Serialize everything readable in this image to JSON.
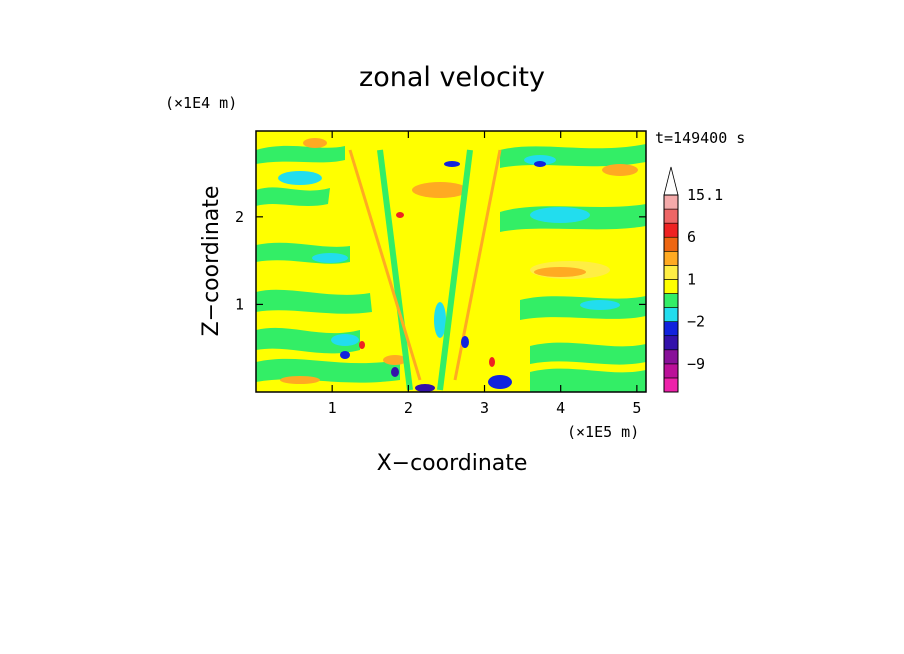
{
  "chart_data": {
    "type": "heatmap",
    "title": "zonal velocity",
    "xlabel": "X−coordinate",
    "ylabel": "Z−coordinate",
    "x_scale_note": "(×1E5 m)",
    "y_scale_note": "(×1E4 m)",
    "time_label": "t=149400 s",
    "xlim": [
      0,
      5.12
    ],
    "ylim": [
      0,
      2.98
    ],
    "x_ticks": [
      {
        "value": 1,
        "label": "1"
      },
      {
        "value": 2,
        "label": "2"
      },
      {
        "value": 3,
        "label": "3"
      },
      {
        "value": 4,
        "label": "4"
      },
      {
        "value": 5,
        "label": "5"
      }
    ],
    "y_ticks": [
      {
        "value": 1,
        "label": "1"
      },
      {
        "value": 2,
        "label": "2"
      }
    ],
    "colorbar": {
      "levels": [
        -15.1,
        -12,
        -9,
        -6,
        -4,
        -2,
        -1,
        0,
        1,
        2,
        4,
        6,
        9,
        12,
        15.1
      ],
      "colors": [
        "#ee22aa",
        "#bb1199",
        "#881199",
        "#3311aa",
        "#1122dd",
        "#22ddee",
        "#33ee66",
        "#ffff00",
        "#ffee44",
        "#ffaa22",
        "#ee6611",
        "#ee2222",
        "#ee6666",
        "#f4aaaa",
        "#ffffff"
      ],
      "tick_labels": [
        {
          "level": 15.1,
          "label": "15.1"
        },
        {
          "level": 6,
          "label": "6"
        },
        {
          "level": 1,
          "label": "1"
        },
        {
          "level": -2,
          "label": "−2"
        },
        {
          "level": -9,
          "label": "−9"
        }
      ]
    }
  }
}
